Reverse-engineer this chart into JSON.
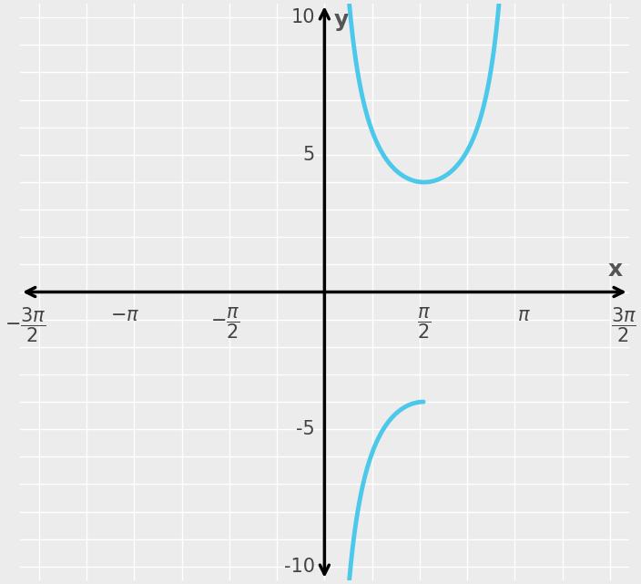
{
  "curve_color": "#4CC8EA",
  "curve_linewidth": 3.5,
  "xlim": [
    -4.8,
    4.8
  ],
  "ylim": [
    -10.5,
    10.5
  ],
  "xtick_vals": [
    -4.71238898038469,
    -3.141592653589793,
    -1.5707963267948966,
    1.5707963267948966,
    3.141592653589793,
    4.71238898038469
  ],
  "xticklabels": [
    "$-\\dfrac{3\\pi}{2}$",
    "$-\\pi$",
    "$-\\dfrac{\\pi}{2}$",
    "$\\dfrac{\\pi}{2}$",
    "$\\pi$",
    "$\\dfrac{3\\pi}{2}$"
  ],
  "ytick_vals": [
    -10,
    -5,
    5,
    10
  ],
  "yticklabels": [
    "-10",
    "-5",
    "5",
    "10"
  ],
  "bg_color": "#ececec",
  "grid_color": "white",
  "xlabel": "x",
  "ylabel": "y",
  "tick_fontsize": 15,
  "label_fontsize": 18
}
